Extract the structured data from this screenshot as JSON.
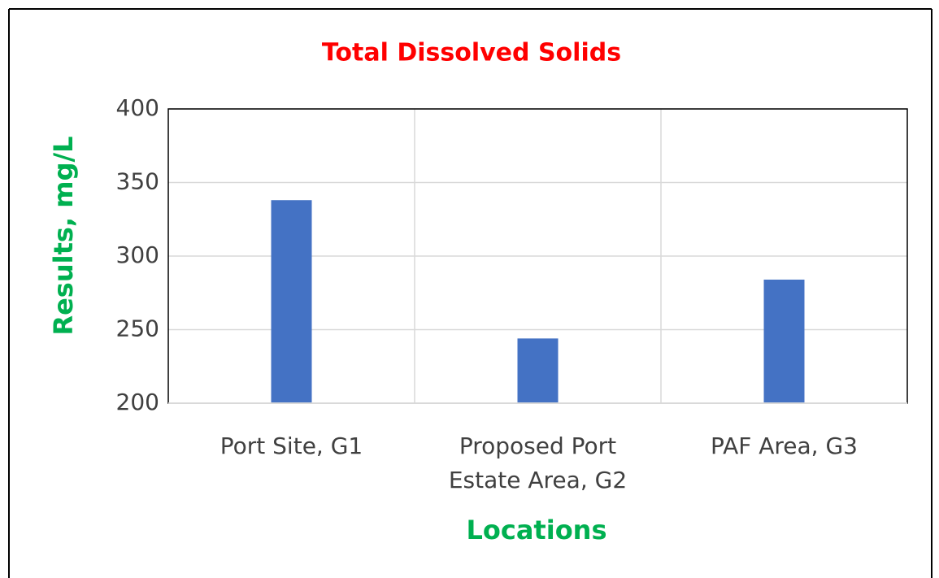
{
  "chart_data": {
    "type": "bar",
    "title": "Total Dissolved Solids",
    "x_label": "Locations",
    "y_label": "Results, mg/L",
    "categories": [
      "Port Site, G1",
      "Proposed Port Estate Area, G2",
      "PAF Area, G3"
    ],
    "values": [
      338,
      244,
      284
    ],
    "color": "#4472c4",
    "ylim": [
      200,
      400
    ],
    "yticks": [
      200,
      250,
      300,
      350,
      400
    ],
    "grid": true
  }
}
